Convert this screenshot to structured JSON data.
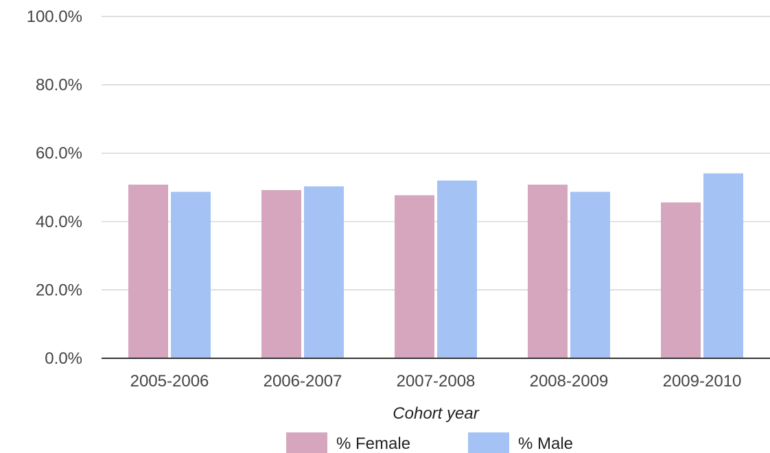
{
  "chart_data": {
    "type": "bar",
    "title": "",
    "xlabel": "Cohort year",
    "ylabel": "",
    "categories": [
      "2005-2006",
      "2006-2007",
      "2007-2008",
      "2008-2009",
      "2009-2010"
    ],
    "series": [
      {
        "name": "% Female",
        "values": [
          50.8,
          49.2,
          47.7,
          50.8,
          45.6
        ],
        "color": "#d5a6bd"
      },
      {
        "name": "% Male",
        "values": [
          48.7,
          50.3,
          52.0,
          48.7,
          54.1
        ],
        "color": "#a4c2f4"
      }
    ],
    "ylim": [
      0,
      100
    ],
    "yticks": [
      "0.0%",
      "20.0%",
      "40.0%",
      "60.0%",
      "80.0%",
      "100.0%"
    ],
    "grid": true,
    "legend_position": "bottom"
  }
}
